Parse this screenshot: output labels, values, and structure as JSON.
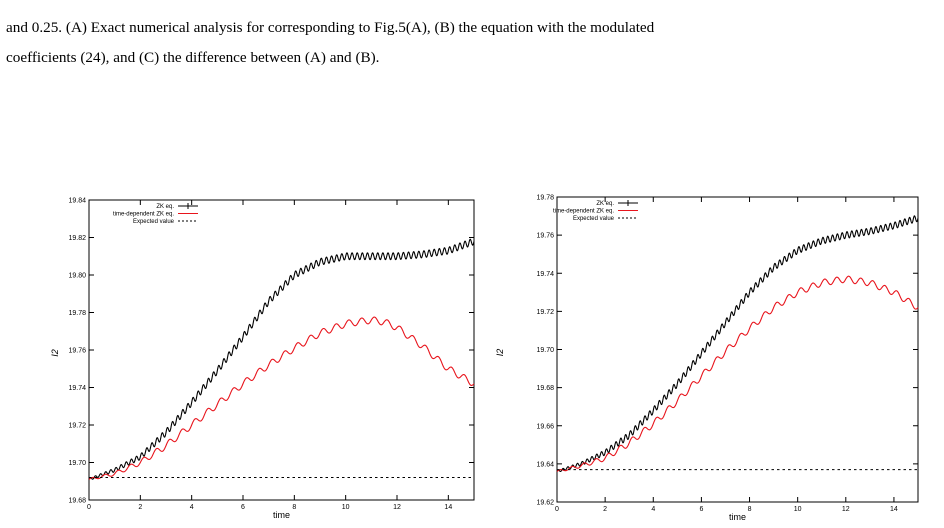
{
  "caption": {
    "line1": "and 0.25. (A) Exact numerical analysis for corresponding to Fig.5(A), (B) the equation with the modulated",
    "line2": "coefficients (24), and (C) the difference between (A) and (B)."
  },
  "chart_data": [
    {
      "type": "line",
      "title": "",
      "xlabel": "time",
      "ylabel": "I2",
      "xlim": [
        0,
        15
      ],
      "ylim": [
        19.68,
        19.84
      ],
      "xticks": [
        0,
        2,
        4,
        6,
        8,
        10,
        12,
        14
      ],
      "yticks": [
        19.68,
        19.7,
        19.72,
        19.74,
        19.76,
        19.78,
        19.8,
        19.82,
        19.84
      ],
      "grid": false,
      "legend_position": "top-left",
      "colors": {
        "zk": "#000000",
        "td": "#e8141c",
        "expected": "#000000"
      },
      "series": [
        {
          "name": "ZK eq.",
          "style": "solid",
          "oscillation": {
            "amplitude": 0.0018,
            "period": 0.2
          },
          "x": [
            0,
            1,
            2,
            3,
            4,
            5,
            6,
            7,
            8,
            9,
            10,
            11,
            12,
            13,
            14,
            15
          ],
          "values": [
            19.691,
            19.696,
            19.703,
            19.716,
            19.732,
            19.749,
            19.767,
            19.786,
            19.8,
            19.807,
            19.81,
            19.81,
            19.81,
            19.811,
            19.813,
            19.818
          ]
        },
        {
          "name": "time-dependent ZK eq.",
          "style": "solid",
          "oscillation": {
            "amplitude": 0.0018,
            "period": 0.5
          },
          "x": [
            0,
            1,
            2,
            3,
            4,
            5,
            6,
            7,
            8,
            9,
            10,
            11,
            11.5,
            12,
            13,
            14,
            15
          ],
          "values": [
            19.691,
            19.694,
            19.7,
            19.709,
            19.72,
            19.731,
            19.742,
            19.752,
            19.761,
            19.769,
            19.774,
            19.776,
            19.775,
            19.772,
            19.762,
            19.75,
            19.742
          ]
        },
        {
          "name": "Expected value",
          "style": "dashed",
          "x": [
            0,
            15
          ],
          "values": [
            19.692,
            19.692
          ]
        }
      ]
    },
    {
      "type": "line",
      "title": "",
      "xlabel": "time",
      "ylabel": "I2",
      "xlim": [
        0,
        15
      ],
      "ylim": [
        19.62,
        19.78
      ],
      "xticks": [
        0,
        2,
        4,
        6,
        8,
        10,
        12,
        14
      ],
      "yticks": [
        19.62,
        19.64,
        19.66,
        19.68,
        19.7,
        19.72,
        19.74,
        19.76,
        19.78
      ],
      "grid": false,
      "legend_position": "top-left",
      "colors": {
        "zk": "#000000",
        "td": "#e8141c",
        "expected": "#000000"
      },
      "series": [
        {
          "name": "ZK eq.",
          "style": "solid",
          "oscillation": {
            "amplitude": 0.0017,
            "period": 0.2
          },
          "x": [
            0,
            1,
            2,
            3,
            4,
            5,
            6,
            7,
            8,
            9,
            10,
            11,
            12,
            13,
            14,
            15
          ],
          "values": [
            19.636,
            19.64,
            19.646,
            19.655,
            19.668,
            19.682,
            19.698,
            19.714,
            19.73,
            19.743,
            19.752,
            19.757,
            19.76,
            19.762,
            19.765,
            19.769
          ]
        },
        {
          "name": "time-dependent ZK eq.",
          "style": "solid",
          "oscillation": {
            "amplitude": 0.0017,
            "period": 0.5
          },
          "x": [
            0,
            1,
            2,
            3,
            4,
            5,
            6,
            7,
            8,
            9,
            10,
            11,
            12,
            13,
            14,
            15
          ],
          "values": [
            19.636,
            19.639,
            19.643,
            19.651,
            19.661,
            19.673,
            19.686,
            19.699,
            19.711,
            19.722,
            19.73,
            19.735,
            19.737,
            19.735,
            19.73,
            19.722
          ]
        },
        {
          "name": "Expected value",
          "style": "dashed",
          "x": [
            0,
            15
          ],
          "values": [
            19.637,
            19.637
          ]
        }
      ]
    }
  ]
}
